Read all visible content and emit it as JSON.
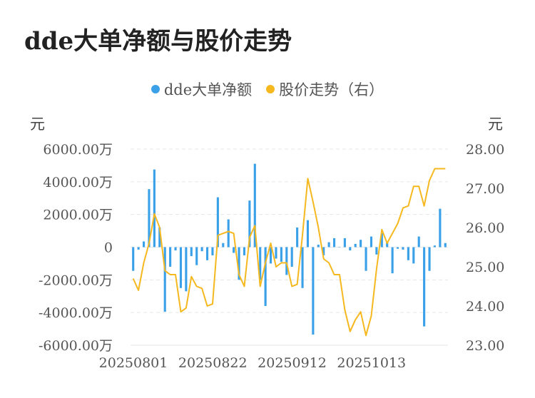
{
  "title": "dde大单净额与股价走势",
  "legend": {
    "left_label": "dde大单净额",
    "right_label": "股价走势（右）"
  },
  "units": {
    "left": "元",
    "right": "元"
  },
  "colors": {
    "bar": "#3aa0e8",
    "line": "#f5b81f",
    "grid": "#e6e6e6"
  },
  "chart_data": {
    "type": "bar+line",
    "x_tick_labels": [
      "20250801",
      "20250822",
      "20250912",
      "20251013"
    ],
    "y_left": {
      "min": -6000,
      "max": 6000,
      "tick_values": [
        6000,
        4000,
        2000,
        0,
        -2000,
        -4000,
        -6000
      ],
      "tick_labels": [
        "6000.00万",
        "4000.00万",
        "2000.00万",
        "0",
        "-2000.00万",
        "-4000.00万",
        "-6000.00万"
      ]
    },
    "y_right": {
      "min": 23.0,
      "max": 28.0,
      "tick_values": [
        28,
        27,
        26,
        25,
        24,
        23
      ],
      "tick_labels": [
        "28.00",
        "27.00",
        "26.00",
        "25.00",
        "24.00",
        "23.00"
      ]
    },
    "bars": [
      -1450,
      -150,
      350,
      3550,
      4750,
      1200,
      -3950,
      -1200,
      -200,
      -2500,
      -2700,
      -550,
      -1100,
      -250,
      -800,
      -500,
      3050,
      250,
      1700,
      -350,
      -2000,
      -500,
      2850,
      5100,
      -2000,
      -3600,
      -1000,
      -700,
      -900,
      -1700,
      -1200,
      1200,
      -2500,
      1650,
      -5350,
      150,
      -500,
      300,
      550,
      0,
      550,
      -200,
      200,
      450,
      -1450,
      650,
      -450,
      850,
      300,
      -1600,
      -100,
      -150,
      -800,
      -1000,
      650,
      -4850,
      -1450,
      100,
      2350,
      250
    ],
    "price": [
      24.7,
      24.4,
      25.1,
      25.6,
      26.35,
      26.0,
      24.9,
      24.8,
      24.8,
      23.85,
      23.95,
      24.75,
      24.5,
      24.45,
      24.0,
      24.05,
      25.8,
      25.85,
      25.9,
      25.85,
      24.8,
      24.5,
      25.75,
      26.05,
      24.5,
      25.1,
      25.6,
      25.0,
      25.1,
      25.1,
      24.5,
      24.55,
      25.8,
      27.25,
      26.65,
      26.0,
      25.2,
      25.1,
      24.8,
      24.8,
      23.9,
      23.35,
      23.65,
      23.85,
      23.25,
      23.75,
      24.95,
      25.95,
      25.6,
      25.85,
      26.1,
      26.5,
      26.55,
      27.05,
      27.05,
      26.55,
      27.2,
      27.5,
      27.5,
      27.5
    ]
  }
}
